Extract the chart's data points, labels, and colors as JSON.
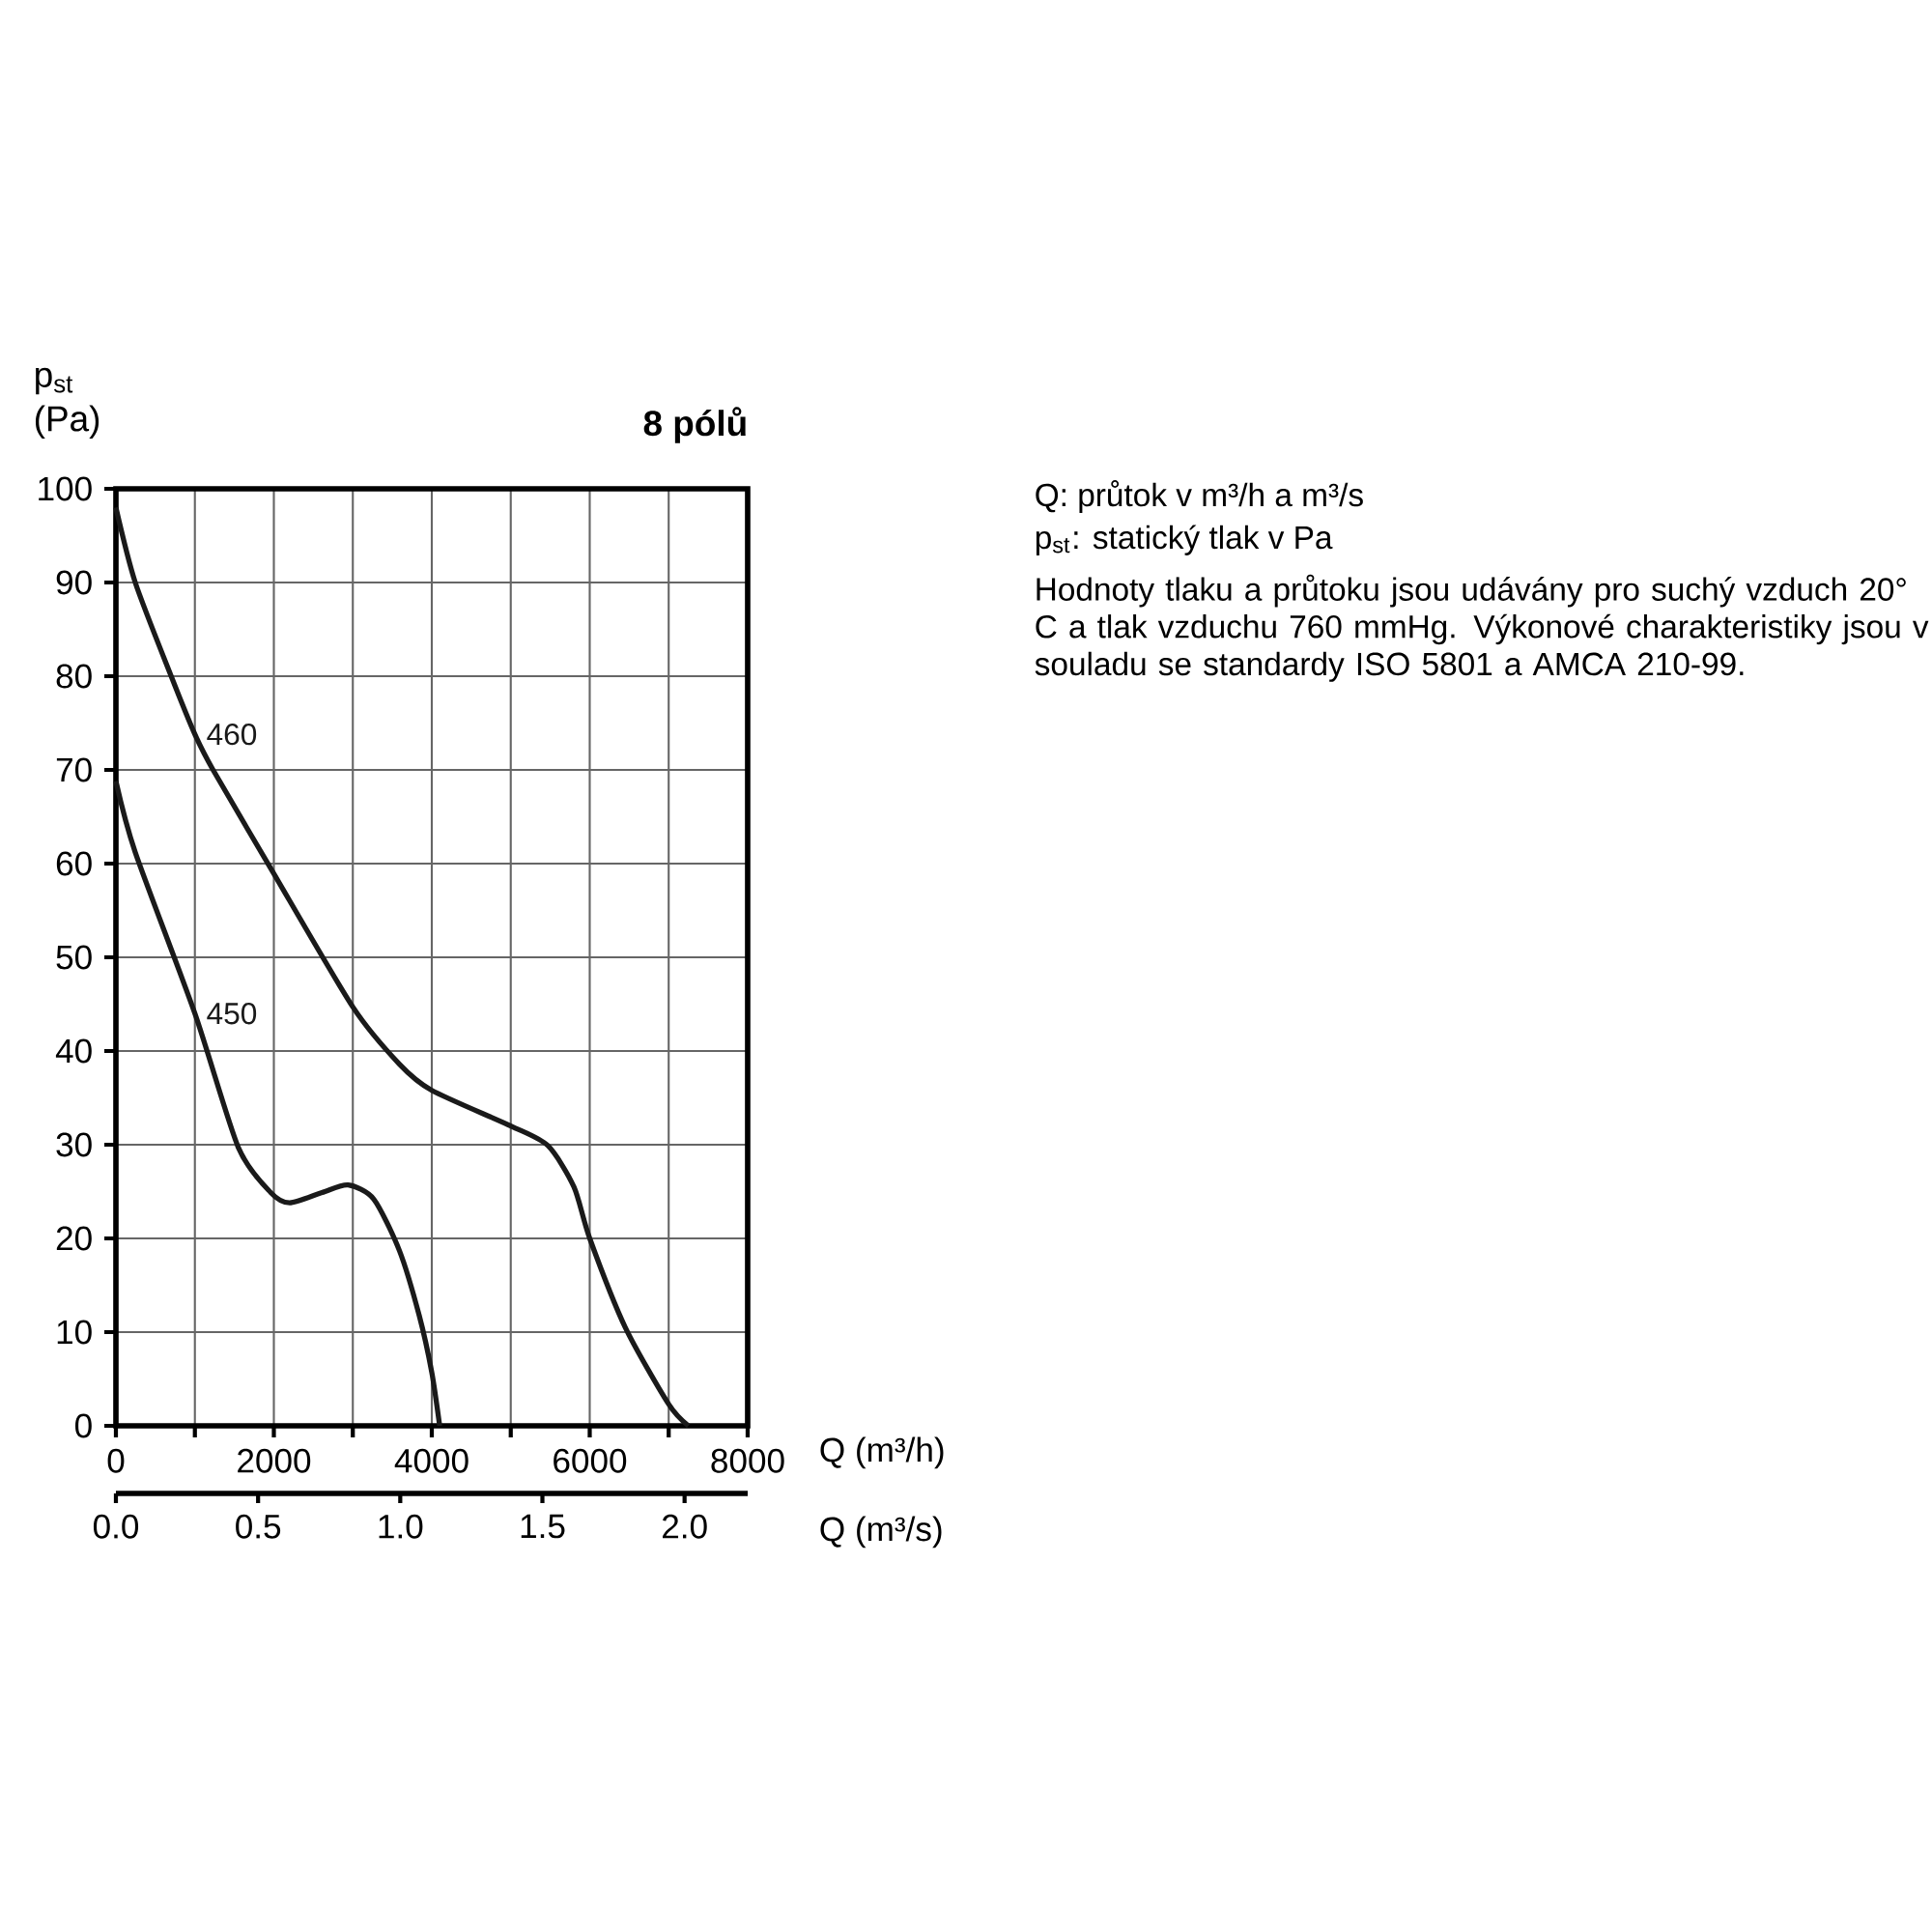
{
  "chart_data": {
    "type": "line",
    "title": "8 pólů",
    "xlabel": "Q (m³/h)",
    "x2label": "Q (m³/s)",
    "ylabel": "p$_{st}$ (Pa)",
    "xlim": [
      0,
      8000
    ],
    "ylim": [
      0,
      100
    ],
    "xticks": [
      0,
      {
        "value": 1000,
        "label": null
      },
      2000,
      {
        "value": 3000,
        "label": null
      },
      4000,
      {
        "value": 5000,
        "label": null
      },
      6000,
      {
        "value": 7000,
        "label": null
      },
      8000
    ],
    "yticks": [
      0,
      10,
      20,
      30,
      40,
      50,
      60,
      70,
      80,
      90,
      100
    ],
    "x2lim": [
      0,
      2.222
    ],
    "x2ticks": [
      {
        "value": 0,
        "label": "0.0"
      },
      0.5,
      {
        "value": 1,
        "label": "1.0"
      },
      1.5,
      {
        "value": 2,
        "label": "2.0"
      }
    ],
    "grid": true,
    "marker": "none",
    "line_style": "solid",
    "series": [
      {
        "name": "460",
        "color": "#1a1a1a",
        "x": [
          0,
          245,
          700,
          1000,
          1230,
          1960,
          3000,
          3590,
          4000,
          5000,
          5470,
          5800,
          6000,
          6450,
          7000,
          7250
        ],
        "values": [
          98,
          90,
          80,
          73.8,
          70,
          59.5,
          44.7,
          38.6,
          35.8,
          32,
          29.9,
          25.5,
          20,
          10.5,
          2.3,
          0
        ]
      },
      {
        "name": "450",
        "color": "#1a1a1a",
        "x": [
          0,
          245,
          1000,
          1550,
          1960,
          2200,
          2610,
          2940,
          3265,
          3590,
          3840,
          4000,
          4100
        ],
        "values": [
          68.8,
          61.2,
          44,
          29.7,
          24.9,
          23.8,
          24.9,
          25.7,
          24.2,
          18.7,
          11.8,
          5.7,
          0
        ]
      }
    ],
    "annotations": [
      "Q: průtok v m³/h a m³/s",
      "p$_{st}$: statický tlak v Pa",
      "Hodnoty tlaku a průtoku jsou udávány pro suchý vzduch 20° C a tlak vzduchu 760 mmHg. Výkonové charakteristiky jsou v souladu se standardy ISO 5801 a AMCA 210-99."
    ]
  }
}
